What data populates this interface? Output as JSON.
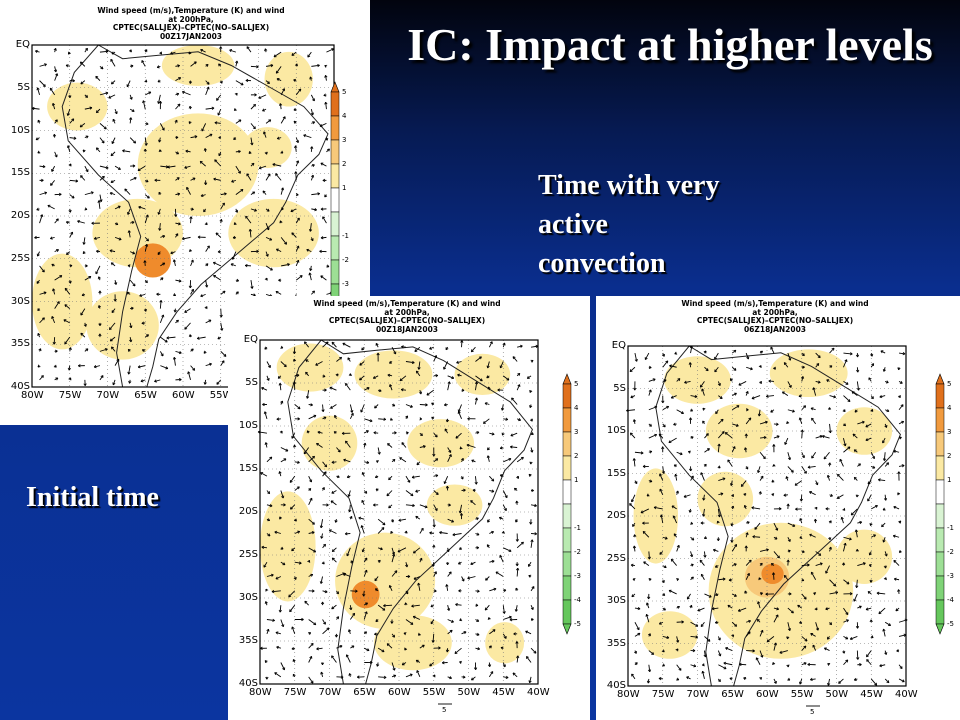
{
  "slide": {
    "title": "IC: Impact at higher levels",
    "note_active": "Time with very active convection",
    "note_initial": "Initial time"
  },
  "colors": {
    "shade_light": "#fbe9a3",
    "shade_mid": "#f7c97a",
    "shade_dark": "#ef8b2c",
    "shade_green": "#a6e6a0"
  },
  "panels": [
    {
      "title_lines": [
        "Wind speed (m/s),Temperature (K) and wind",
        "at 200hPa,",
        "CPTEC(SALLJEX)–CPTEC(NO–SALLJEX)",
        "00Z17JAN2003"
      ]
    },
    {
      "title_lines": [
        "Wind speed (m/s),Temperature (K) and wind",
        "at 200hPa,",
        "CPTEC(SALLJEX)–CPTEC(NO–SALLJEX)",
        "00Z18JAN2003"
      ]
    },
    {
      "title_lines": [
        "Wind speed (m/s),Temperature (K) and wind",
        "at 200hPa,",
        "CPTEC(SALLJEX)–CPTEC(NO–SALLJEX)",
        "06Z18JAN2003"
      ]
    }
  ],
  "map_axes": {
    "lat_labels": [
      "EQ",
      "5S",
      "10S",
      "15S",
      "20S",
      "25S",
      "30S",
      "35S",
      "40S"
    ],
    "lon_labels": [
      "80W",
      "75W",
      "70W",
      "65W",
      "60W",
      "55W",
      "50W",
      "45W",
      "40W"
    ]
  },
  "colorbar": {
    "labels": [
      "5",
      "4",
      "3",
      "2",
      "1",
      "-1",
      "-2",
      "-3",
      "-4",
      "-5"
    ]
  },
  "vector_ref": "5"
}
